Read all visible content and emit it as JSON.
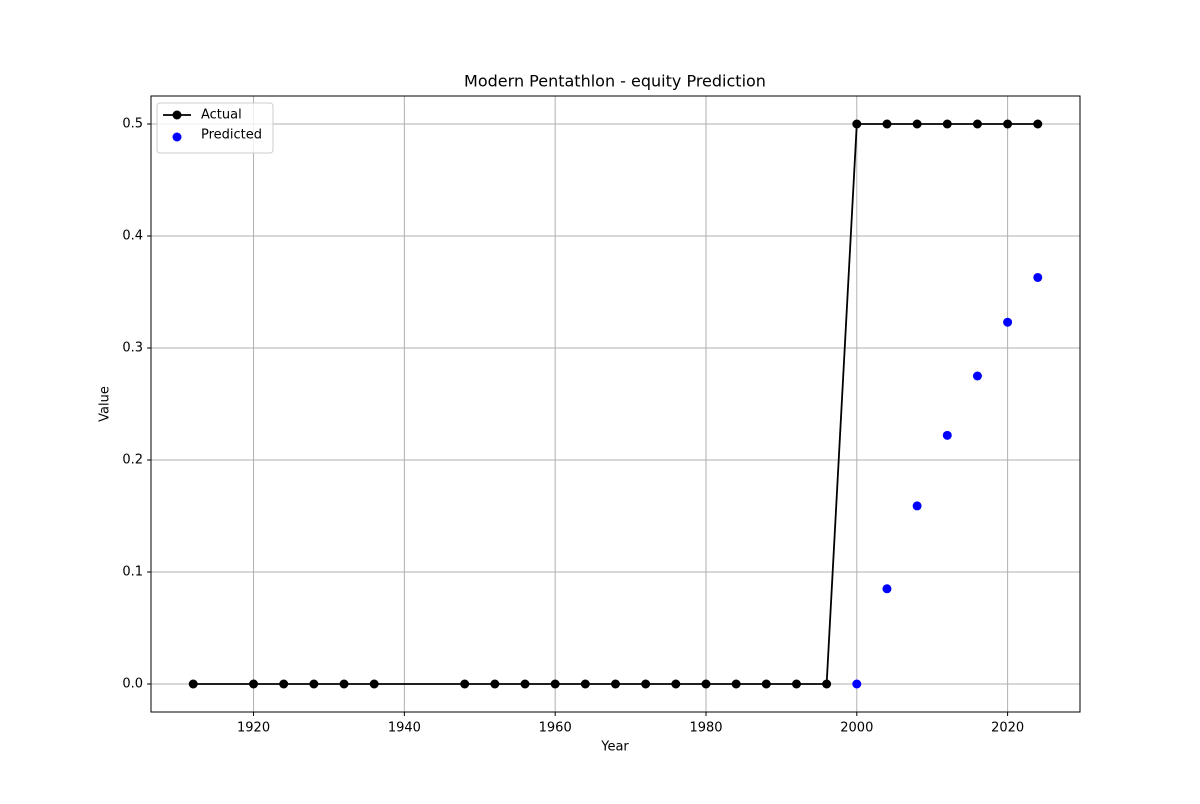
{
  "chart_data": {
    "type": "line",
    "title": "Modern Pentathlon - equity Prediction",
    "xlabel": "Year",
    "ylabel": "Value",
    "series": [
      {
        "name": "Actual",
        "color": "#000000",
        "x": [
          1912,
          1920,
          1924,
          1928,
          1932,
          1936,
          1948,
          1952,
          1956,
          1960,
          1964,
          1968,
          1972,
          1976,
          1980,
          1984,
          1988,
          1992,
          1996,
          2000,
          2004,
          2008,
          2012,
          2016,
          2020,
          2024
        ],
        "values": [
          0,
          0,
          0,
          0,
          0,
          0,
          0,
          0,
          0,
          0,
          0,
          0,
          0,
          0,
          0,
          0,
          0,
          0,
          0,
          0.5,
          0.5,
          0.5,
          0.5,
          0.5,
          0.5,
          0.5
        ]
      },
      {
        "name": "Predicted",
        "color": "#0000ff",
        "type": "scatter",
        "x": [
          2000,
          2004,
          2008,
          2012,
          2016,
          2020,
          2024
        ],
        "values": [
          0,
          0.085,
          0.159,
          0.222,
          0.275,
          0.323,
          0.363
        ]
      }
    ],
    "xlim": [
      1906.4,
      2029.6
    ],
    "xticks": [
      1920,
      1940,
      1960,
      1980,
      2000,
      2020
    ],
    "ylim": [
      -0.025,
      0.525
    ],
    "yticks": [
      {
        "value": 0,
        "label": "0.0"
      },
      0.1,
      0.2,
      0.3,
      0.4,
      0.5
    ],
    "grid": true,
    "legend": "upper left"
  }
}
